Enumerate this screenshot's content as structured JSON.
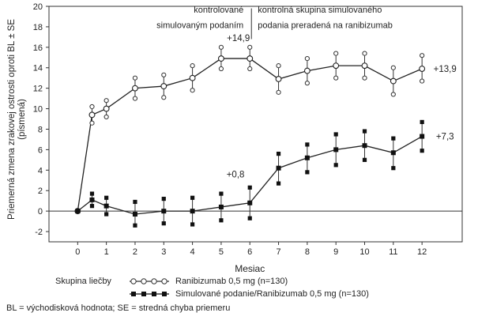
{
  "chart_data": {
    "type": "line",
    "ylabel_line1": "Priemerná zmena zrakovej ostrosti oproti BL ± SE",
    "ylabel_line2": "(písmená)",
    "xlabel": "Mesiac",
    "ylim": [
      -3,
      20
    ],
    "yticks": [
      -2,
      0,
      2,
      4,
      6,
      8,
      10,
      12,
      14,
      16,
      18,
      20
    ],
    "xlim": [
      -1,
      13.4
    ],
    "xticks": [
      0,
      1,
      2,
      3,
      4,
      5,
      6,
      7,
      8,
      9,
      10,
      11,
      12
    ],
    "period_labels": {
      "left_line1": "kontrolované",
      "left_line2": "simulovaným podaním",
      "right_line1": "kontrolná skupina simulovaného",
      "right_line2": "podania preradená na ranibizumab"
    },
    "divider_month": 6,
    "series": [
      {
        "name": "Ranibizumab 0,5 mg (n=130)",
        "marker": "open-circle",
        "x": [
          0,
          0.5,
          1,
          2,
          3,
          4,
          5,
          6,
          7,
          8,
          9,
          10,
          11,
          12
        ],
        "y": [
          0,
          9.4,
          10,
          12,
          12.2,
          13,
          14.9,
          14.9,
          12.9,
          13.7,
          14.2,
          14.2,
          12.7,
          13.9
        ],
        "se_low": [
          0,
          8.6,
          9.2,
          11.0,
          11.1,
          11.8,
          13.9,
          13.9,
          11.6,
          12.5,
          13.0,
          13.0,
          11.4,
          12.7
        ],
        "se_high": [
          0,
          10.2,
          10.8,
          13.0,
          13.3,
          14.2,
          16.0,
          16.0,
          14.2,
          14.9,
          15.4,
          15.4,
          14.0,
          15.2
        ]
      },
      {
        "name": "Simulované podanie/Ranibizumab 0,5 mg (n=130)",
        "marker": "filled-square",
        "x": [
          0,
          0.5,
          1,
          2,
          3,
          4,
          5,
          6,
          7,
          8,
          9,
          10,
          11,
          12
        ],
        "y": [
          0,
          1.1,
          0.5,
          -0.3,
          0,
          0,
          0.4,
          0.8,
          4.2,
          5.2,
          6.0,
          6.4,
          5.7,
          7.3
        ],
        "se_low": [
          0,
          0.5,
          -0.3,
          -1.4,
          -1.2,
          -1.3,
          -0.9,
          -0.7,
          2.7,
          3.8,
          4.5,
          5.0,
          4.2,
          5.9
        ],
        "se_high": [
          0,
          1.7,
          1.3,
          0.9,
          1.2,
          1.3,
          1.7,
          2.3,
          5.6,
          6.5,
          7.5,
          7.8,
          7.1,
          8.7
        ]
      }
    ],
    "annotations": [
      {
        "text": "+14,9",
        "x": 5.6,
        "y": 16.9
      },
      {
        "text": "+13,9",
        "x": 12.8,
        "y": 13.9
      },
      {
        "text": "+0,8",
        "x": 5.5,
        "y": 3.6
      },
      {
        "text": "+7,3",
        "x": 12.8,
        "y": 7.3
      }
    ]
  },
  "legend": {
    "title": "Skupina liečby",
    "items": [
      {
        "label": "Ranibizumab 0,5 mg (n=130)",
        "marker": "open-circle"
      },
      {
        "label": "Simulované podanie/Ranibizumab 0,5 mg (n=130)",
        "marker": "filled-square"
      }
    ]
  },
  "footnote": "BL = východisková hodnota; SE = stredná chyba priemeru"
}
